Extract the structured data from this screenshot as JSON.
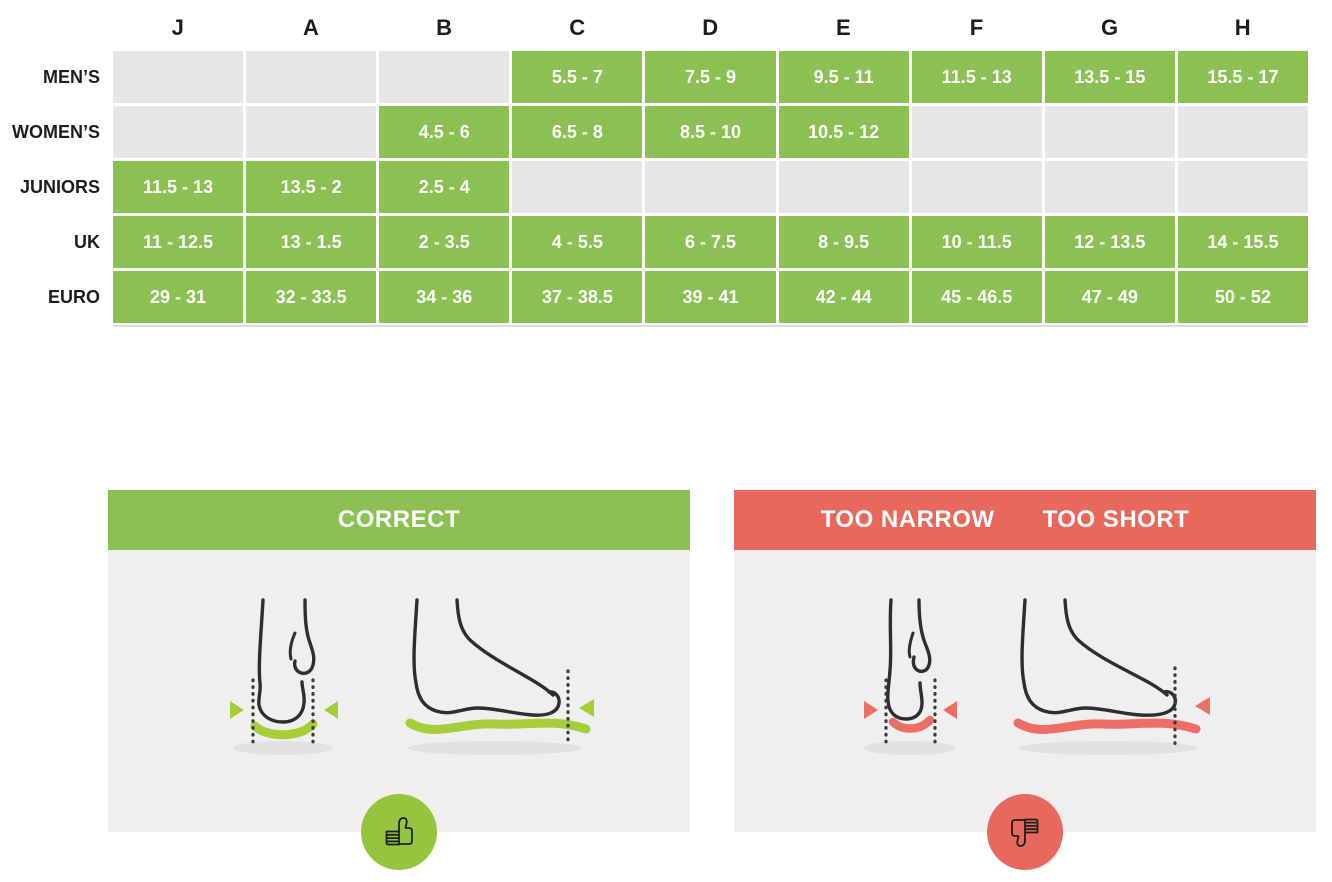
{
  "chart_data": {
    "type": "table",
    "columns": [
      "J",
      "A",
      "B",
      "C",
      "D",
      "E",
      "F",
      "G",
      "H"
    ],
    "rows": [
      {
        "label": "MEN’S",
        "cells": [
          "",
          "",
          "",
          "5.5 - 7",
          "7.5 - 9",
          "9.5 - 11",
          "11.5 - 13",
          "13.5 - 15",
          "15.5 - 17"
        ]
      },
      {
        "label": "WOMEN’S",
        "cells": [
          "",
          "",
          "4.5 - 6",
          "6.5 - 8",
          "8.5 - 10",
          "10.5 - 12",
          "",
          "",
          ""
        ]
      },
      {
        "label": "JUNIORS",
        "cells": [
          "11.5 - 13",
          "13.5 - 2",
          "2.5 - 4",
          "",
          "",
          "",
          "",
          "",
          ""
        ]
      },
      {
        "label": "UK",
        "cells": [
          "11 - 12.5",
          "13 - 1.5",
          "2 - 3.5",
          "4 - 5.5",
          "6 - 7.5",
          "8 - 9.5",
          "10 - 11.5",
          "12 - 13.5",
          "14 - 15.5"
        ]
      },
      {
        "label": "EURO",
        "cells": [
          "29 - 31",
          "32 - 33.5",
          "34 - 36",
          "37 - 38.5",
          "39 - 41",
          "42 - 44",
          "45 - 46.5",
          "47 - 49",
          "50 - 52"
        ]
      }
    ],
    "filled_cell_color": "#8BC152",
    "empty_cell_color": "#E6E6E6"
  },
  "panels": {
    "correct": {
      "title": "CORRECT"
    },
    "incorrect": {
      "title_narrow": "TOO NARROW",
      "title_short": "TOO SHORT"
    }
  },
  "colors": {
    "table_green": "#8BC152",
    "header_red": "#E8695C",
    "underline_green": "#A5CE39",
    "underline_red": "#EE6E65",
    "badge_green": "#95C53E",
    "badge_red": "#E9685D",
    "panel_body_gray": "#EFEFEF",
    "outline_dark": "#2E2E2E",
    "cell_text_white": "#FFFFFF",
    "label_text_dark": "#1D1D1B"
  },
  "icons": {
    "thumbs_up": "thumbs-up-icon",
    "thumbs_down": "thumbs-down-icon"
  }
}
